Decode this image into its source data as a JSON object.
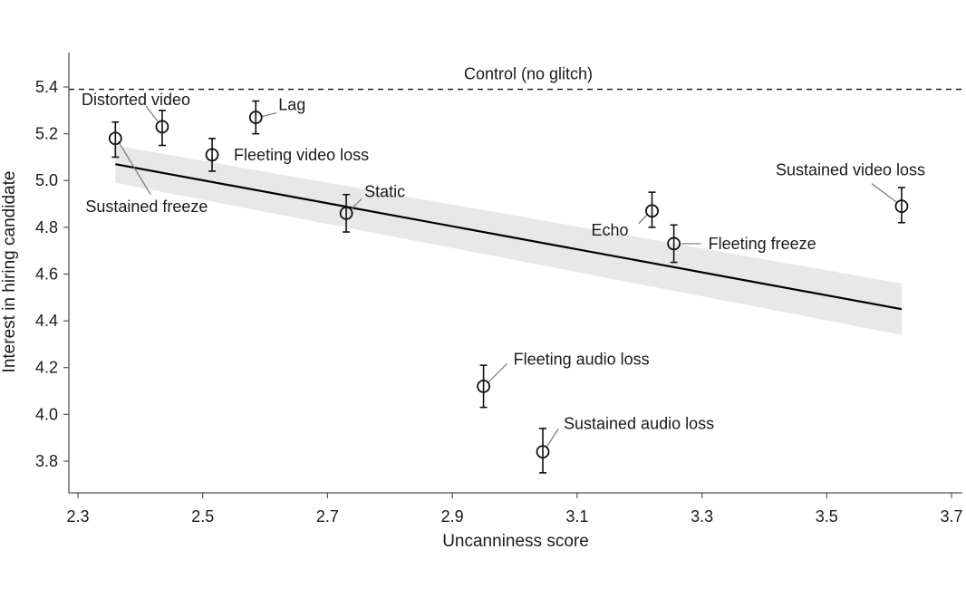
{
  "chart_data": {
    "type": "scatter",
    "title": "",
    "xlabel": "Uncanniness score",
    "ylabel": "Interest in hiring candidate",
    "xlim": [
      2.285,
      3.72
    ],
    "ylim": [
      3.66,
      5.56
    ],
    "xticks": [
      2.3,
      2.5,
      2.7,
      2.9,
      3.1,
      3.3,
      3.5,
      3.7
    ],
    "xtick_labels": [
      "2.3",
      "2.5",
      "2.7",
      "2.9",
      "3.1",
      "3.3",
      "3.5",
      "3.7"
    ],
    "yticks": [
      3.8,
      4.0,
      4.2,
      4.4,
      4.6,
      4.8,
      5.0,
      5.2,
      5.4
    ],
    "ytick_labels": [
      "3.8",
      "4.0",
      "4.2",
      "4.4",
      "4.6",
      "4.8",
      "5.0",
      "5.2",
      "5.4"
    ],
    "grid": false,
    "legend": "none",
    "points": [
      {
        "label": "Sustained freeze",
        "x": 2.36,
        "y": 5.18,
        "ylow": 5.1,
        "yhigh": 5.25,
        "label_pos": "below-right"
      },
      {
        "label": "Distorted video",
        "x": 2.435,
        "y": 5.23,
        "ylow": 5.15,
        "yhigh": 5.3,
        "label_pos": "above-left"
      },
      {
        "label": "Fleeting video loss",
        "x": 2.515,
        "y": 5.11,
        "ylow": 5.04,
        "yhigh": 5.18,
        "label_pos": "right"
      },
      {
        "label": "Lag",
        "x": 2.585,
        "y": 5.27,
        "ylow": 5.2,
        "yhigh": 5.34,
        "label_pos": "upper-right"
      },
      {
        "label": "Static",
        "x": 2.73,
        "y": 4.86,
        "ylow": 4.78,
        "yhigh": 4.94,
        "label_pos": "upper-right"
      },
      {
        "label": "Fleeting audio loss",
        "x": 2.95,
        "y": 4.12,
        "ylow": 4.03,
        "yhigh": 4.21,
        "label_pos": "upper-right"
      },
      {
        "label": "Sustained audio loss",
        "x": 3.045,
        "y": 3.84,
        "ylow": 3.75,
        "yhigh": 3.94,
        "label_pos": "upper-right"
      },
      {
        "label": "Echo",
        "x": 3.22,
        "y": 4.87,
        "ylow": 4.8,
        "yhigh": 4.95,
        "label_pos": "lower-left"
      },
      {
        "label": "Fleeting freeze",
        "x": 3.255,
        "y": 4.73,
        "ylow": 4.65,
        "yhigh": 4.81,
        "label_pos": "right"
      },
      {
        "label": "Sustained video loss",
        "x": 3.62,
        "y": 4.89,
        "ylow": 4.82,
        "yhigh": 4.97,
        "label_pos": "upper-left"
      }
    ],
    "fit_line": {
      "x": [
        2.36,
        3.62
      ],
      "y": [
        5.07,
        4.45
      ]
    },
    "confidence_band": {
      "x": [
        2.36,
        3.62
      ],
      "ylow": [
        4.99,
        4.34
      ],
      "yhigh": [
        5.15,
        4.56
      ]
    },
    "reference_line": {
      "label": "Control (no glitch)",
      "y": 5.39,
      "style": "dashed"
    },
    "colors": {
      "marker": "#111111",
      "fit": "#000000",
      "band": "#e8e8e8",
      "leader": "#777777",
      "axis": "#555555"
    }
  }
}
